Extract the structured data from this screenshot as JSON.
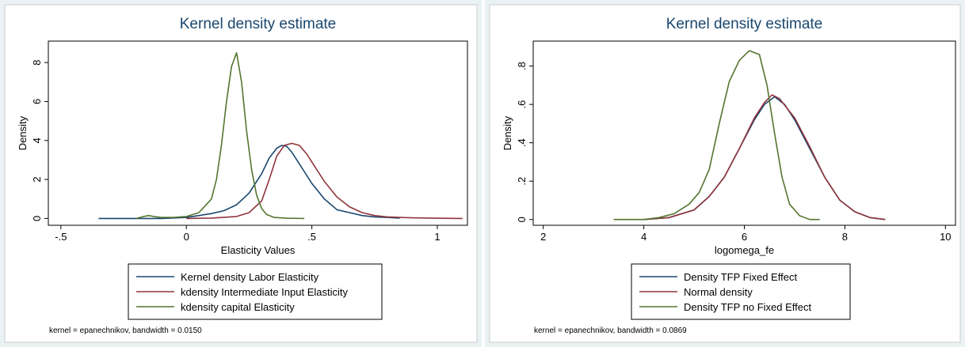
{
  "chart_data": [
    {
      "type": "line",
      "title": "Kernel density estimate",
      "xlabel": "Elasticity Values",
      "ylabel": "Density",
      "xlim": [
        -0.55,
        1.12
      ],
      "ylim": [
        -0.35,
        9.1
      ],
      "xticks": [
        -0.5,
        0,
        0.5,
        1
      ],
      "xtick_labels": [
        "-.5",
        "0",
        ".5",
        "1"
      ],
      "yticks": [
        0,
        2,
        4,
        6,
        8
      ],
      "ytick_labels": [
        "0",
        "2",
        "4",
        "6",
        "8"
      ],
      "grid": false,
      "legend_position": "bottom",
      "note": "kernel = epanechnikov, bandwidth = 0.0150",
      "series": [
        {
          "name": "Kernel density Labor Elasticity",
          "color": "#1a476f",
          "x": [
            -0.35,
            -0.2,
            -0.1,
            0,
            0.05,
            0.1,
            0.15,
            0.2,
            0.25,
            0.3,
            0.33,
            0.36,
            0.38,
            0.4,
            0.42,
            0.45,
            0.5,
            0.55,
            0.6,
            0.65,
            0.7,
            0.75,
            0.8,
            0.85
          ],
          "y": [
            0,
            0,
            0,
            0.05,
            0.15,
            0.25,
            0.4,
            0.7,
            1.3,
            2.3,
            3.1,
            3.6,
            3.75,
            3.7,
            3.4,
            2.8,
            1.8,
            1.0,
            0.45,
            0.3,
            0.15,
            0.08,
            0.05,
            0.02
          ]
        },
        {
          "name": "kdensity Intermediate Input Elasticity",
          "color": "#90353b",
          "x": [
            0,
            0.1,
            0.2,
            0.25,
            0.3,
            0.33,
            0.36,
            0.39,
            0.42,
            0.45,
            0.48,
            0.5,
            0.55,
            0.6,
            0.65,
            0.7,
            0.75,
            0.8,
            0.9,
            1.0,
            1.1
          ],
          "y": [
            0,
            0.02,
            0.1,
            0.3,
            0.9,
            2.0,
            3.2,
            3.75,
            3.85,
            3.75,
            3.3,
            2.9,
            1.9,
            1.1,
            0.6,
            0.3,
            0.15,
            0.08,
            0.03,
            0.01,
            0
          ]
        },
        {
          "name": "kdensity capital Elasticity",
          "color": "#55752f",
          "x": [
            -0.2,
            -0.17,
            -0.15,
            -0.13,
            -0.1,
            -0.05,
            0,
            0.05,
            0.1,
            0.12,
            0.14,
            0.16,
            0.18,
            0.2,
            0.22,
            0.24,
            0.26,
            0.28,
            0.3,
            0.32,
            0.35,
            0.4,
            0.47
          ],
          "y": [
            0,
            0.1,
            0.15,
            0.1,
            0.05,
            0.05,
            0.1,
            0.3,
            1.0,
            2.0,
            3.8,
            6.0,
            7.8,
            8.5,
            7.0,
            4.5,
            2.5,
            1.2,
            0.5,
            0.2,
            0.05,
            0.01,
            0
          ]
        }
      ]
    },
    {
      "type": "line",
      "title": "Kernel density estimate",
      "xlabel": "logomega_fe",
      "ylabel": "Density",
      "xlim": [
        1.8,
        10.2
      ],
      "ylim": [
        -0.03,
        0.93
      ],
      "xticks": [
        2,
        4,
        6,
        8,
        10
      ],
      "xtick_labels": [
        "2",
        "4",
        "6",
        "8",
        "10"
      ],
      "yticks": [
        0,
        0.2,
        0.4,
        0.6,
        0.8
      ],
      "ytick_labels": [
        "0",
        ".2",
        ".4",
        ".6",
        ".8"
      ],
      "grid": false,
      "legend_position": "bottom",
      "note": "kernel = epanechnikov, bandwidth = 0.0869",
      "series": [
        {
          "name": "Density TFP Fixed Effect",
          "color": "#1a476f",
          "x": [
            4.0,
            4.5,
            5.0,
            5.3,
            5.6,
            5.9,
            6.2,
            6.4,
            6.6,
            6.8,
            7.0,
            7.3,
            7.6,
            7.9,
            8.2,
            8.5,
            8.8
          ],
          "y": [
            0.0,
            0.01,
            0.05,
            0.12,
            0.22,
            0.37,
            0.52,
            0.6,
            0.64,
            0.6,
            0.52,
            0.37,
            0.22,
            0.1,
            0.04,
            0.01,
            0.0
          ]
        },
        {
          "name": "Normal density",
          "color": "#90353b",
          "x": [
            4.0,
            4.5,
            5.0,
            5.3,
            5.6,
            5.9,
            6.2,
            6.4,
            6.55,
            6.7,
            7.0,
            7.3,
            7.6,
            7.9,
            8.2,
            8.5,
            8.8
          ],
          "y": [
            0.0,
            0.01,
            0.05,
            0.12,
            0.22,
            0.37,
            0.53,
            0.61,
            0.65,
            0.63,
            0.53,
            0.38,
            0.22,
            0.1,
            0.04,
            0.01,
            0.0
          ]
        },
        {
          "name": "Density TFP no Fixed Effect",
          "color": "#55752f",
          "x": [
            3.4,
            4.0,
            4.3,
            4.6,
            4.9,
            5.1,
            5.3,
            5.5,
            5.7,
            5.9,
            6.1,
            6.3,
            6.45,
            6.6,
            6.75,
            6.9,
            7.1,
            7.3,
            7.5
          ],
          "y": [
            0.0,
            0.0,
            0.01,
            0.03,
            0.08,
            0.14,
            0.26,
            0.5,
            0.72,
            0.83,
            0.88,
            0.86,
            0.7,
            0.45,
            0.22,
            0.08,
            0.02,
            0.0,
            0.0
          ]
        }
      ]
    }
  ]
}
